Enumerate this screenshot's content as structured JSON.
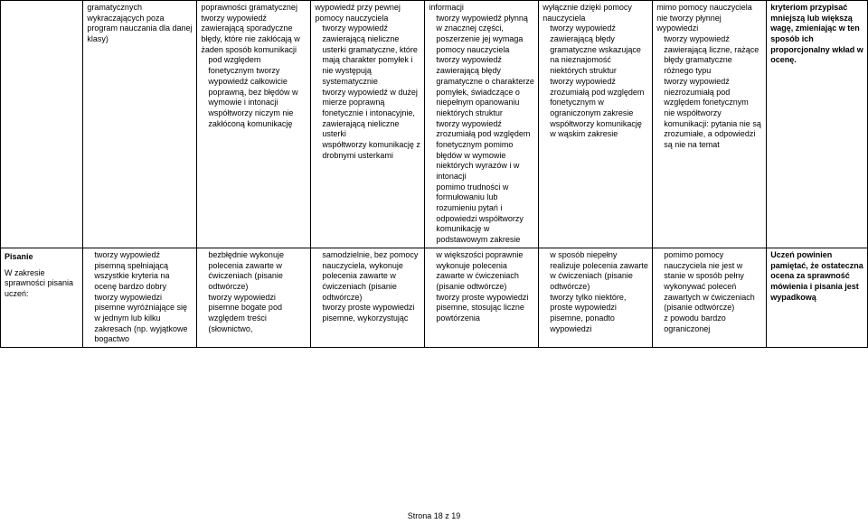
{
  "footer": "Strona 18 z 19",
  "row1": {
    "label": "",
    "cells": [
      "gramatycznych wykraczających poza program nauczania dla danej klasy)",
      "poprawności gramatycznej tworzy wypowiedź zawierającą sporadyczne błędy, które nie zakłócają w żaden sposób komunikacji\n   pod względem fonetycznym tworzy wypowiedź całkowicie poprawną, bez błędów w wymowie i intonacji\n   współtworzy niczym nie zakłóconą komunikację",
      "wypowiedź przy pewnej pomocy nauczyciela\n   tworzy wypowiedź zawierającą nieliczne usterki gramatyczne, które mają charakter pomyłek i nie występują systematycznie\n   tworzy wypowiedź w dużej mierze poprawną fonetycznie i intonacyjnie, zawierającą nieliczne usterki\n   współtworzy komunikację z drobnymi usterkami",
      "informacji\n   tworzy wypowiedź płynną w znacznej części, poszerzenie jej wymaga pomocy nauczyciela\n   tworzy wypowiedź zawierającą błędy gramatyczne o charakterze pomyłek, świadczące o niepełnym opanowaniu niektórych struktur\n   tworzy wypowiedź zrozumiałą pod względem fonetycznym pomimo błędów w wymowie niektórych wyrazów i w intonacji\n   pomimo trudności w formułowaniu lub rozumieniu pytań i odpowiedzi współtworzy komunikację w podstawowym zakresie",
      "wyłącznie dzięki pomocy nauczyciela\n   tworzy wypowiedź zawierającą błędy gramatyczne wskazujące na nieznajomość niektórych struktur\n   tworzy wypowiedź zrozumiałą pod względem fonetycznym w ograniczonym zakresie\n   współtworzy komunikację w wąskim zakresie",
      "mimo pomocy nauczyciela nie tworzy płynnej wypowiedzi\n   tworzy wypowiedź zawierającą liczne, rażące błędy gramatyczne różnego typu\n   tworzy wypowiedź niezrozumiałą pod względem fonetycznym\n   nie współtworzy komunikacji: pytania nie są zrozumiałe, a odpowiedzi są nie na temat",
      "kryteriom przypisać mniejszą lub większą wagę, zmieniając w ten sposób ich proporcjonalny wkład w ocenę."
    ]
  },
  "row2": {
    "label_bold": "Pisanie",
    "label_sub": "W zakresie sprawności pisania uczeń:",
    "cells": [
      "   tworzy wypowiedź pisemną spełniającą wszystkie kryteria na ocenę bardzo dobry\n   tworzy wypowiedzi pisemne wyróżniające się w jednym lub kilku zakresach (np. wyjątkowe bogactwo",
      "   bezbłędnie wykonuje polecenia zawarte w ćwiczeniach (pisanie odtwórcze)\n   tworzy wypowiedzi pisemne bogate pod względem treści (słownictwo,",
      "   samodzielnie, bez pomocy nauczyciela, wykonuje polecenia zawarte w ćwiczeniach (pisanie odtwórcze)\n   tworzy proste wypowiedzi pisemne, wykorzystując",
      "   w większości poprawnie wykonuje polecenia zawarte w ćwiczeniach (pisanie odtwórcze)\n   tworzy proste wypowiedzi pisemne, stosując liczne powtórzenia",
      "   w sposób niepełny realizuje polecenia zawarte w ćwiczeniach (pisanie odtwórcze)\n   tworzy tylko niektóre, proste wypowiedzi pisemne, ponadto wypowiedzi",
      "   pomimo pomocy nauczyciela nie jest w stanie w sposób pełny wykonywać poleceń zawartych w ćwiczeniach (pisanie odtwórcze)\n   z powodu bardzo ograniczonej",
      "Uczeń powinien pamiętać, że ostateczna ocena za sprawność mówienia i pisania jest wypadkową"
    ]
  }
}
